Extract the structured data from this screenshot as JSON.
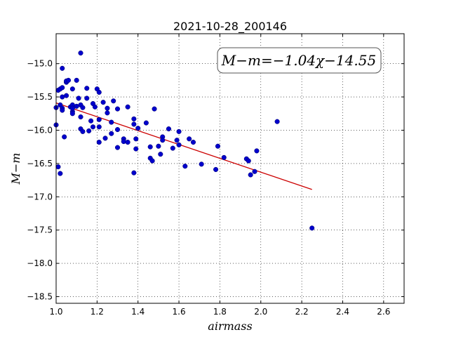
{
  "chart_data": {
    "type": "scatter",
    "title": "2021-10-28_200146",
    "xlabel": "airmass",
    "ylabel": "M−m",
    "xlim": [
      1.0,
      2.7
    ],
    "ylim": [
      -18.6,
      -14.55
    ],
    "y_inverted": true,
    "xticks": [
      1.0,
      1.2,
      1.4,
      1.6,
      1.8,
      2.0,
      2.2,
      2.4,
      2.6
    ],
    "xtick_labels": [
      "1.0",
      "1.2",
      "1.4",
      "1.6",
      "1.8",
      "2.0",
      "2.2",
      "2.4",
      "2.6"
    ],
    "yticks": [
      -15.0,
      -15.5,
      -16.0,
      -16.5,
      -17.0,
      -17.5,
      -18.0,
      -18.5
    ],
    "ytick_labels": [
      "−15.0",
      "−15.5",
      "−16.0",
      "−16.5",
      "−17.0",
      "−17.5",
      "−18.0",
      "−18.5"
    ],
    "grid": true,
    "annotation": "M−m=−1.04χ−14.55",
    "annotation_position": "top-right",
    "point_color": "#0000cc",
    "fit_color": "#cc0000",
    "fit": {
      "slope": -1.04,
      "intercept": -14.55,
      "x_range": [
        1.0,
        2.25
      ]
    },
    "points": [
      [
        1.0,
        -15.92
      ],
      [
        1.0,
        -15.66
      ],
      [
        1.01,
        -15.4
      ],
      [
        1.01,
        -16.55
      ],
      [
        1.02,
        -16.65
      ],
      [
        1.02,
        -15.38
      ],
      [
        1.02,
        -15.62
      ],
      [
        1.03,
        -15.67
      ],
      [
        1.03,
        -15.7
      ],
      [
        1.03,
        -15.5
      ],
      [
        1.03,
        -15.36
      ],
      [
        1.03,
        -15.07
      ],
      [
        1.04,
        -16.1
      ],
      [
        1.05,
        -15.28
      ],
      [
        1.05,
        -15.48
      ],
      [
        1.05,
        -15.26
      ],
      [
        1.06,
        -15.25
      ],
      [
        1.07,
        -15.65
      ],
      [
        1.08,
        -15.62
      ],
      [
        1.08,
        -15.72
      ],
      [
        1.08,
        -15.67
      ],
      [
        1.08,
        -15.75
      ],
      [
        1.08,
        -15.38
      ],
      [
        1.1,
        -15.64
      ],
      [
        1.1,
        -15.25
      ],
      [
        1.11,
        -15.52
      ],
      [
        1.12,
        -15.98
      ],
      [
        1.12,
        -15.8
      ],
      [
        1.12,
        -14.84
      ],
      [
        1.12,
        -15.62
      ],
      [
        1.13,
        -15.66
      ],
      [
        1.13,
        -16.02
      ],
      [
        1.15,
        -15.52
      ],
      [
        1.15,
        -15.37
      ],
      [
        1.16,
        -16.01
      ],
      [
        1.17,
        -15.86
      ],
      [
        1.18,
        -15.6
      ],
      [
        1.18,
        -15.95
      ],
      [
        1.19,
        -15.65
      ],
      [
        1.2,
        -15.38
      ],
      [
        1.21,
        -15.95
      ],
      [
        1.21,
        -16.18
      ],
      [
        1.21,
        -15.84
      ],
      [
        1.21,
        -15.43
      ],
      [
        1.23,
        -15.58
      ],
      [
        1.24,
        -16.12
      ],
      [
        1.25,
        -15.74
      ],
      [
        1.25,
        -15.67
      ],
      [
        1.27,
        -15.88
      ],
      [
        1.27,
        -16.05
      ],
      [
        1.28,
        -15.56
      ],
      [
        1.3,
        -16.26
      ],
      [
        1.3,
        -15.99
      ],
      [
        1.3,
        -15.68
      ],
      [
        1.33,
        -16.13
      ],
      [
        1.33,
        -16.17
      ],
      [
        1.35,
        -16.18
      ],
      [
        1.35,
        -15.65
      ],
      [
        1.38,
        -15.83
      ],
      [
        1.38,
        -15.91
      ],
      [
        1.38,
        -16.64
      ],
      [
        1.39,
        -16.28
      ],
      [
        1.39,
        -16.13
      ],
      [
        1.4,
        -15.97
      ],
      [
        1.44,
        -15.89
      ],
      [
        1.46,
        -16.25
      ],
      [
        1.46,
        -16.42
      ],
      [
        1.47,
        -16.46
      ],
      [
        1.48,
        -15.68
      ],
      [
        1.5,
        -16.24
      ],
      [
        1.51,
        -16.36
      ],
      [
        1.52,
        -16.1
      ],
      [
        1.52,
        -16.15
      ],
      [
        1.55,
        -15.98
      ],
      [
        1.57,
        -16.27
      ],
      [
        1.59,
        -16.15
      ],
      [
        1.6,
        -16.22
      ],
      [
        1.6,
        -16.02
      ],
      [
        1.63,
        -16.54
      ],
      [
        1.65,
        -16.13
      ],
      [
        1.67,
        -16.18
      ],
      [
        1.71,
        -16.51
      ],
      [
        1.78,
        -16.59
      ],
      [
        1.79,
        -16.24
      ],
      [
        1.82,
        -16.41
      ],
      [
        1.93,
        -16.43
      ],
      [
        1.94,
        -16.46
      ],
      [
        1.95,
        -16.67
      ],
      [
        1.97,
        -16.62
      ],
      [
        1.98,
        -16.31
      ],
      [
        2.08,
        -15.87
      ],
      [
        2.25,
        -17.47
      ]
    ]
  }
}
